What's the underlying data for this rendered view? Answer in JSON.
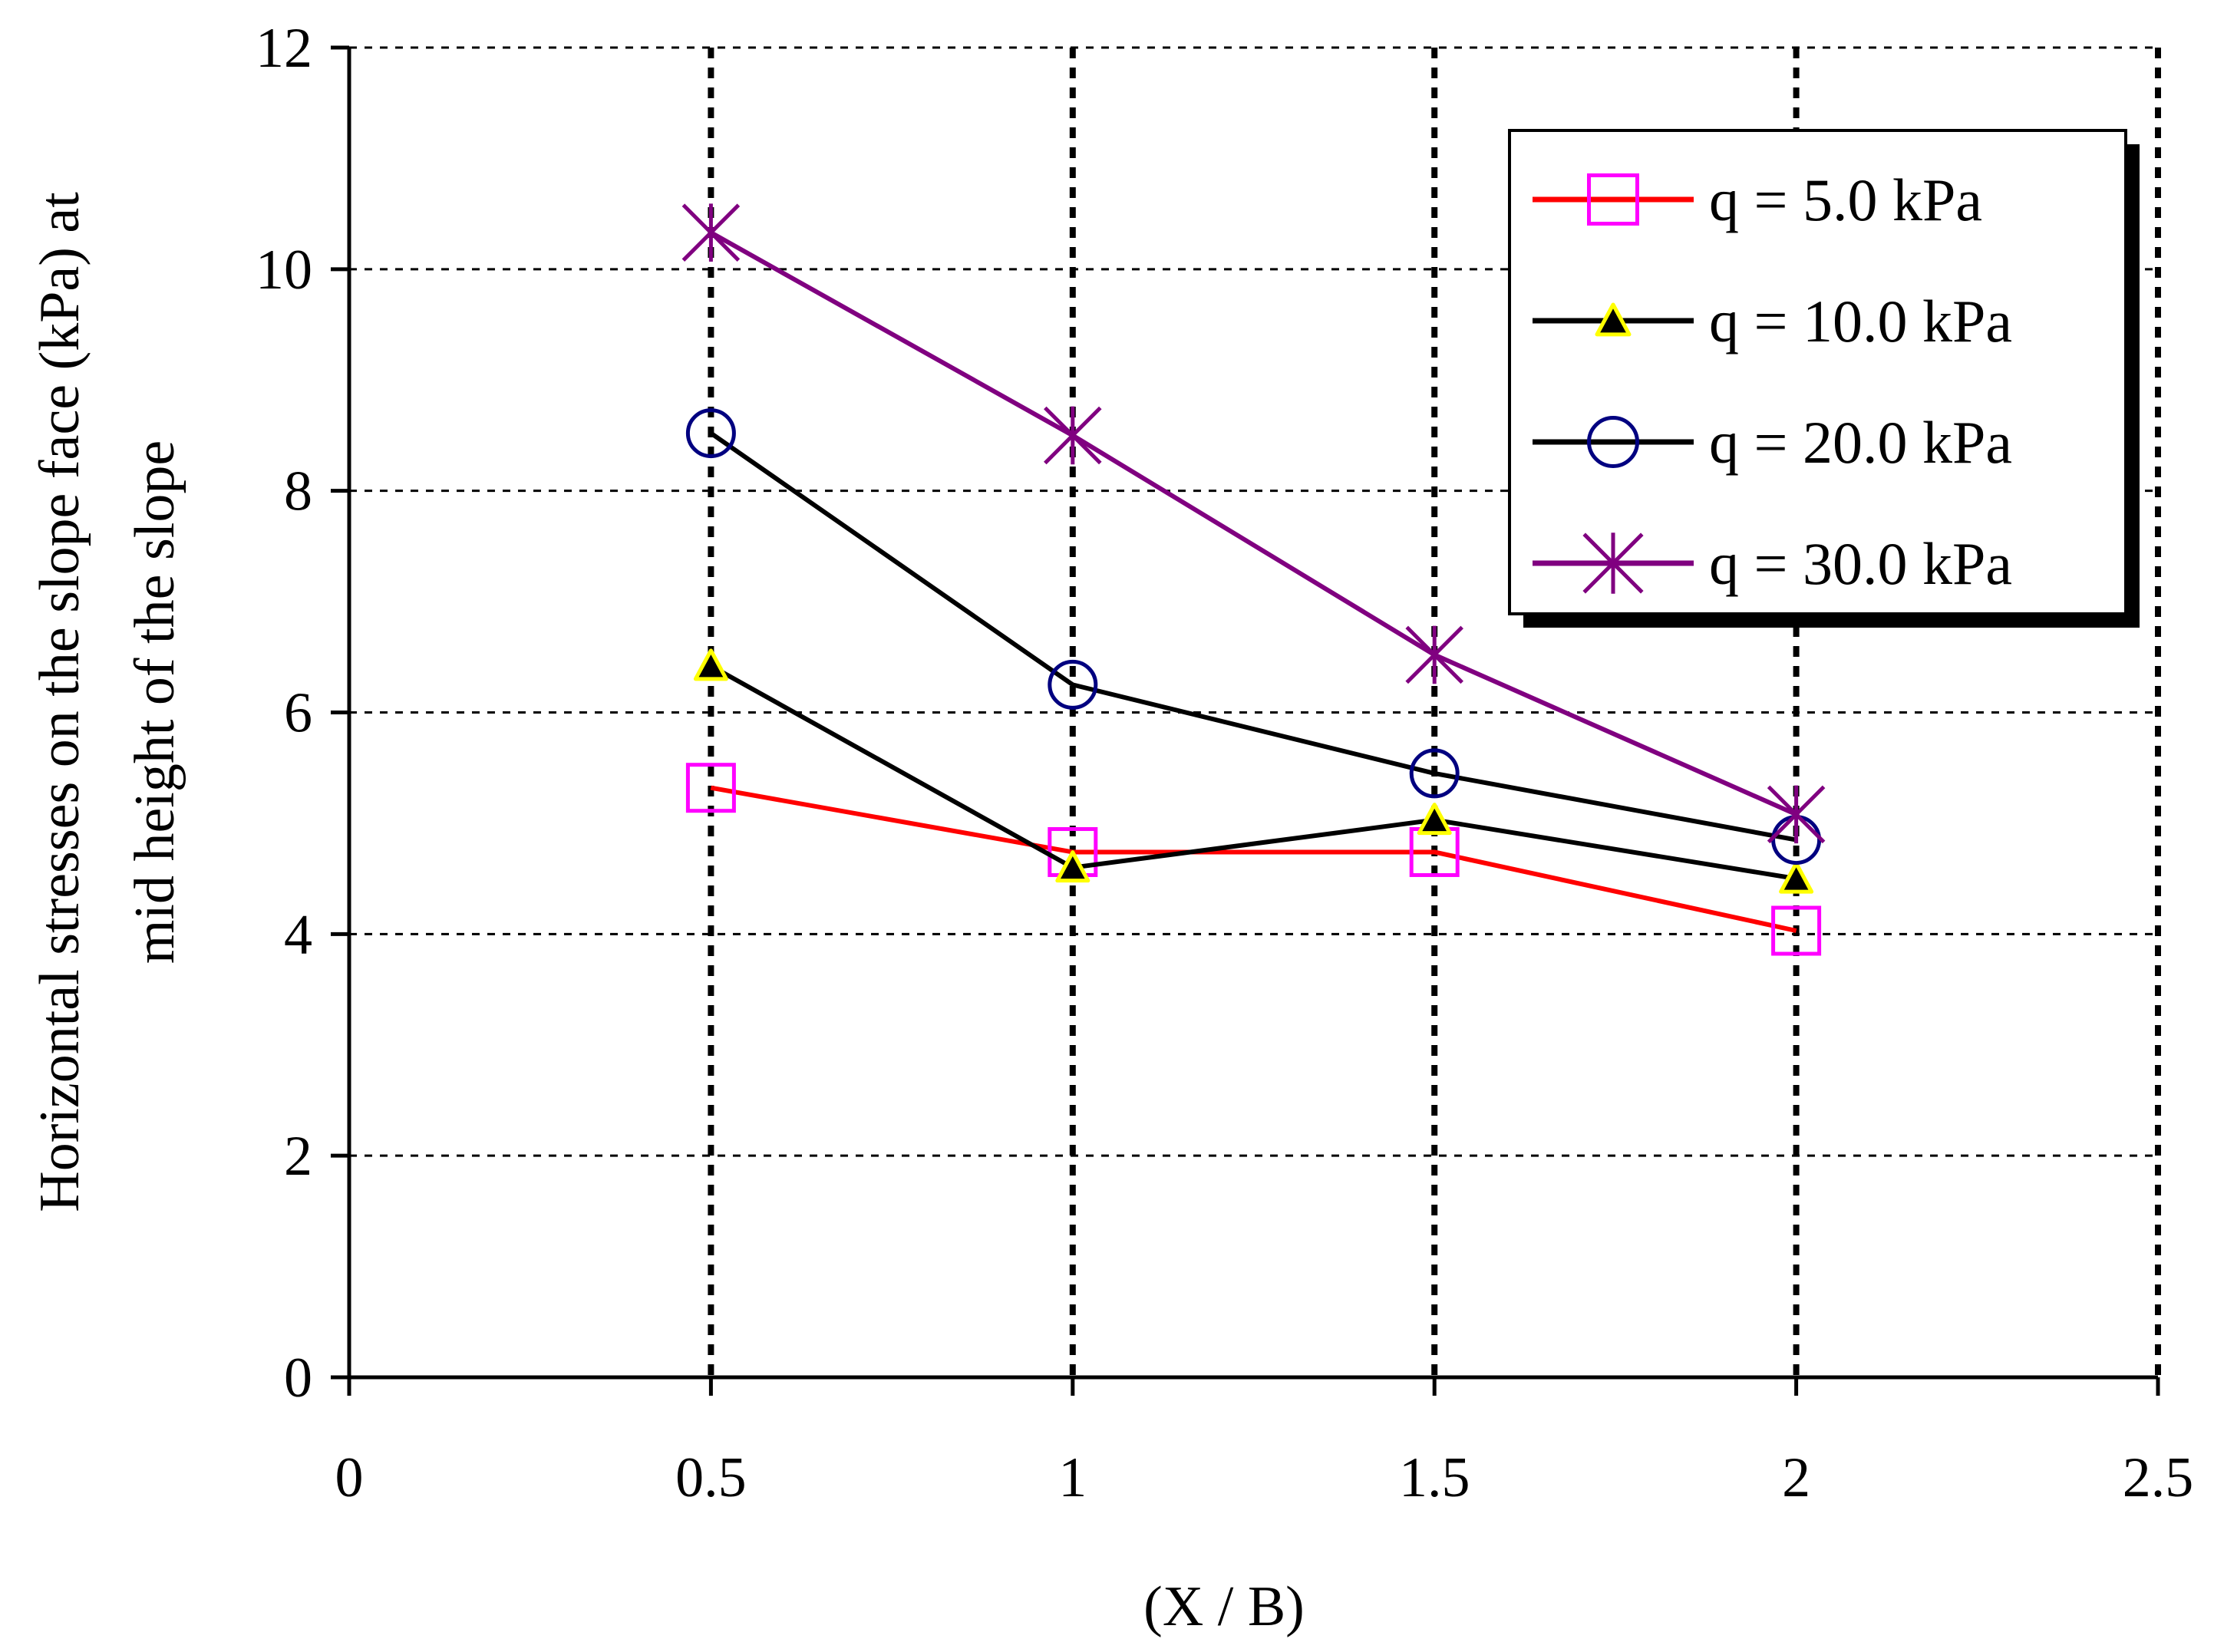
{
  "chart_data": {
    "type": "line",
    "title": "",
    "xlabel": "(X / B)",
    "ylabel_line1": "Horizontal stresses on the slope face (kPa) at",
    "ylabel_line2": "mid height of the slope",
    "xlim": [
      0,
      2.5
    ],
    "ylim": [
      0,
      12
    ],
    "x_ticks": [
      0,
      0.5,
      1,
      1.5,
      2,
      2.5
    ],
    "x_tick_labels": [
      "0",
      "0.5",
      "1",
      "1.5",
      "2",
      "2.5"
    ],
    "y_ticks": [
      0,
      2,
      4,
      6,
      8,
      10,
      12
    ],
    "y_tick_labels": [
      "0",
      "2",
      "4",
      "6",
      "8",
      "10",
      "12"
    ],
    "grid": true,
    "legend_position": "top-right",
    "x": [
      0.5,
      1,
      1.5,
      2
    ],
    "series": [
      {
        "name": "q = 5.0 kPa",
        "values": [
          5.32,
          4.74,
          4.74,
          4.03
        ],
        "line_color": "#ff0000",
        "marker": "square",
        "marker_stroke": "#ff00ff",
        "marker_fill": "none"
      },
      {
        "name": "q = 10.0 kPa",
        "values": [
          6.42,
          4.6,
          5.03,
          4.5
        ],
        "line_color": "#000000",
        "marker": "triangle",
        "marker_stroke": "#000000",
        "marker_fill": "#000000",
        "marker_fill_secondary": "#ffff00"
      },
      {
        "name": "q = 20.0 kPa",
        "values": [
          8.52,
          6.25,
          5.45,
          4.85
        ],
        "line_color": "#000000",
        "marker": "circle",
        "marker_stroke": "#000080",
        "marker_fill": "none"
      },
      {
        "name": "q = 30.0 kPa",
        "values": [
          10.33,
          8.5,
          6.52,
          5.08
        ],
        "line_color": "#800080",
        "marker": "asterisk",
        "marker_stroke": "#800080",
        "marker_fill": "none"
      }
    ]
  }
}
